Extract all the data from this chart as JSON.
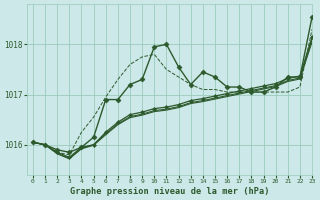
{
  "title": "Graphe pression niveau de la mer (hPa)",
  "bg_color": "#cce8e8",
  "grid_color": "#99ccbb",
  "line_color": "#2d5a2d",
  "xlim": [
    -0.5,
    23
  ],
  "ylim": [
    1015.4,
    1018.8
  ],
  "yticks": [
    1016,
    1017,
    1018
  ],
  "xticks": [
    0,
    1,
    2,
    3,
    4,
    5,
    6,
    7,
    8,
    9,
    10,
    11,
    12,
    13,
    14,
    15,
    16,
    17,
    18,
    19,
    20,
    21,
    22,
    23
  ],
  "series": [
    {
      "y": [
        1016.05,
        1016.0,
        1015.9,
        1015.85,
        1015.95,
        1016.15,
        1016.9,
        1016.9,
        1017.2,
        1017.3,
        1017.95,
        1018.0,
        1017.55,
        1017.2,
        1017.45,
        1017.35,
        1017.15,
        1017.15,
        1017.05,
        1017.05,
        1017.15,
        1017.35,
        1017.35,
        1018.55
      ],
      "marker": "D",
      "markersize": 2.5,
      "lw": 1.0,
      "linestyle": "-"
    },
    {
      "y": [
        1016.05,
        1016.0,
        1015.85,
        1015.75,
        1015.95,
        1016.0,
        1016.25,
        1016.45,
        1016.6,
        1016.65,
        1016.72,
        1016.75,
        1016.8,
        1016.88,
        1016.92,
        1016.97,
        1017.02,
        1017.07,
        1017.12,
        1017.17,
        1017.22,
        1017.32,
        1017.37,
        1018.15
      ],
      "marker": "D",
      "markersize": 2.0,
      "lw": 0.9,
      "linestyle": "-"
    },
    {
      "y": [
        1016.05,
        1016.0,
        1015.83,
        1015.73,
        1015.93,
        1016.0,
        1016.22,
        1016.42,
        1016.56,
        1016.61,
        1016.68,
        1016.71,
        1016.76,
        1016.84,
        1016.88,
        1016.93,
        1016.98,
        1017.03,
        1017.08,
        1017.13,
        1017.18,
        1017.28,
        1017.33,
        1018.1
      ],
      "marker": null,
      "markersize": 0,
      "lw": 0.8,
      "linestyle": "-"
    },
    {
      "y": [
        1016.05,
        1016.0,
        1015.82,
        1015.72,
        1015.92,
        1015.99,
        1016.2,
        1016.4,
        1016.54,
        1016.59,
        1016.66,
        1016.69,
        1016.74,
        1016.82,
        1016.86,
        1016.91,
        1016.96,
        1017.01,
        1017.06,
        1017.11,
        1017.16,
        1017.26,
        1017.31,
        1018.05
      ],
      "marker": null,
      "markersize": 0,
      "lw": 0.8,
      "linestyle": "-"
    }
  ],
  "thin_series": {
    "y": [
      1016.05,
      1016.0,
      1015.85,
      1015.8,
      1016.25,
      1016.55,
      1016.95,
      1017.3,
      1017.6,
      1017.75,
      1017.8,
      1017.5,
      1017.35,
      1017.2,
      1017.1,
      1017.1,
      1017.05,
      1017.05,
      1017.05,
      1017.05,
      1017.05,
      1017.05,
      1017.15,
      1018.3
    ],
    "lw": 0.7,
    "linestyle": "--"
  }
}
